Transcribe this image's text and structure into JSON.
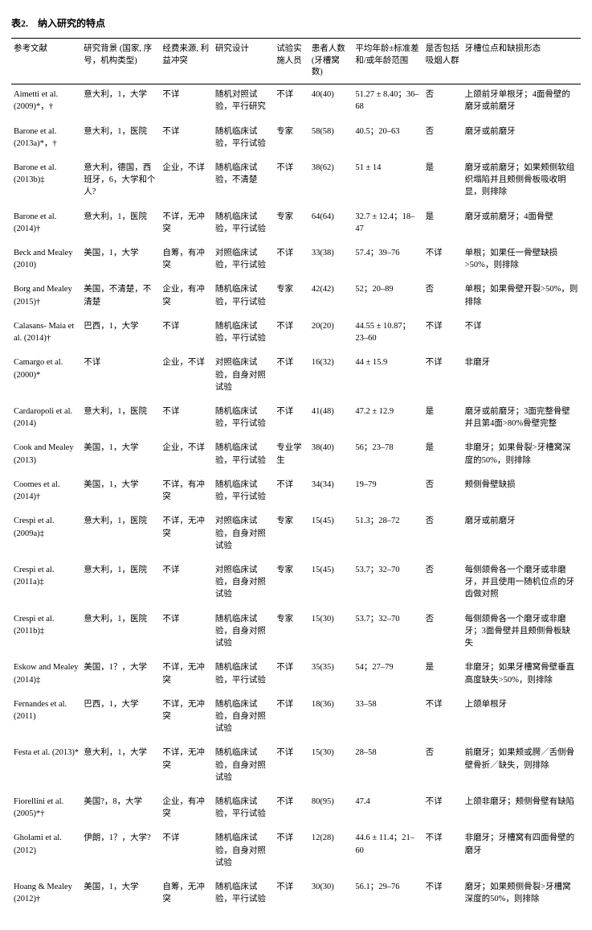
{
  "title": "表2.　纳入研究的特点",
  "columns": [
    "参考文献",
    "研究背景 (国家, 序号，机构类型)",
    "经费来源, 利益冲突",
    "研究设计",
    "试验实施人员",
    "患者人数 (牙槽窝数)",
    "平均年龄±标准差和/或年龄范围",
    "是否包括吸烟人群",
    "牙槽位点和缺损形态"
  ],
  "rows": [
    {
      "ref": "Aimetti et al. (2009)*，†",
      "bg": "意大利，1，大学",
      "fund": "不详",
      "design": "随机对照试验，平行研究",
      "staff": "不详",
      "pat": "40(40)",
      "age": "51.27 ± 8.40；36–68",
      "smoke": "否",
      "morph": "上颌前牙单根牙；4面骨壁的磨牙或前磨牙"
    },
    {
      "ref": "Barone et al. (2013a)*，†",
      "bg": "意大利，1，医院",
      "fund": "不详",
      "design": "随机临床试验，平行试验",
      "staff": "专家",
      "pat": "58(58)",
      "age": "40.5；20–63",
      "smoke": "否",
      "morph": "磨牙或前磨牙"
    },
    {
      "ref": "Barone et al. (2013b)‡",
      "bg": "意大利，德国，西班牙，6，大学和个人?",
      "fund": "企业，不详",
      "design": "随机临床试验，不清楚",
      "staff": "不详",
      "pat": "38(62)",
      "age": "51 ± 14",
      "smoke": "是",
      "morph": "磨牙或前磨牙；如果颊侧软组织塌陷并且颊侧骨板吸收明显，则排除"
    },
    {
      "ref": "Barone et al. (2014)†",
      "bg": "意大利，1，医院",
      "fund": "不详，无冲突",
      "design": "随机临床试验，平行试验",
      "staff": "专家",
      "pat": "64(64)",
      "age": "32.7 ± 12.4；18–47",
      "smoke": "是",
      "morph": "磨牙或前磨牙；4面骨壁"
    },
    {
      "ref": "Beck and Mealey (2010)",
      "bg": "美国，1，大学",
      "fund": "自筹，有冲突",
      "design": "对照临床试验，平行试验",
      "staff": "不详",
      "pat": "33(38)",
      "age": "57.4；39–76",
      "smoke": "不详",
      "morph": "单根；如果任一骨壁缺损>50%，则排除"
    },
    {
      "ref": "Borg and Mealey (2015)†",
      "bg": "美国，不清楚，不清楚",
      "fund": "企业，有冲突",
      "design": "随机临床试验，平行试验",
      "staff": "专家",
      "pat": "42(42)",
      "age": "52；20–89",
      "smoke": "否",
      "morph": "单根；如果骨壁开裂>50%，则排除"
    },
    {
      "ref": "Calasans- Maia et al. (2014)†",
      "bg": "巴西，1，大学",
      "fund": "不详",
      "design": "随机临床试验，平行试验",
      "staff": "不详",
      "pat": "20(20)",
      "age": "44.55 ± 10.87；23–60",
      "smoke": "不详",
      "morph": "不详"
    },
    {
      "ref": "Camargo et al. (2000)*",
      "bg": "不详",
      "fund": "企业，不详",
      "design": "对照临床试验，自身对照试验",
      "staff": "不详",
      "pat": "16(32)",
      "age": "44 ± 15.9",
      "smoke": "不详",
      "morph": "非磨牙"
    },
    {
      "ref": "Cardaropoli et al.(2014)",
      "bg": "意大利，1，医院",
      "fund": "不详",
      "design": "随机临床试验，平行试验",
      "staff": "不详",
      "pat": "41(48)",
      "age": "47.2 ± 12.9",
      "smoke": "是",
      "morph": "磨牙或前磨牙；3面完整骨壁并且第4面>80%骨壁完整"
    },
    {
      "ref": "Cook and Mealey (2013)",
      "bg": "美国，1，大学",
      "fund": "企业，不详",
      "design": "随机临床试验，平行试验",
      "staff": "专业学生",
      "pat": "38(40)",
      "age": "56；23–78",
      "smoke": "是",
      "morph": "非磨牙；如果骨裂>牙槽窝深度的50%，则排除"
    },
    {
      "ref": "Coomes et al. (2014)†",
      "bg": "美国，1，大学",
      "fund": "不详，有冲突",
      "design": "随机临床试验，平行试验",
      "staff": "不详",
      "pat": "34(34)",
      "age": "19–79",
      "smoke": "否",
      "morph": "颊侧骨壁缺损"
    },
    {
      "ref": "Crespi et al. (2009a)‡",
      "bg": "意大利，1，医院",
      "fund": "不详，无冲突",
      "design": "对照临床试验，自身对照试验",
      "staff": "专家",
      "pat": "15(45)",
      "age": "51.3；28–72",
      "smoke": "否",
      "morph": "磨牙或前磨牙"
    },
    {
      "ref": "Crespi et al. (2011a)‡",
      "bg": "意大利，1，医院",
      "fund": "不详",
      "design": "对照临床试验，自身对照试验",
      "staff": "专家",
      "pat": "15(45)",
      "age": "53.7；32–70",
      "smoke": "否",
      "morph": "每侧颌骨各一个磨牙或非磨牙，并且使用一随机位点的牙齿做对照"
    },
    {
      "ref": "Crespi et al. (2011b)‡",
      "bg": "意大利，1，医院",
      "fund": "不详",
      "design": "随机临床试验，自身对照试验",
      "staff": "专家",
      "pat": "15(30)",
      "age": "53.7；32–70",
      "smoke": "否",
      "morph": "每侧颌骨各一个磨牙或非磨牙；3面骨壁并且颊侧骨板缺失"
    },
    {
      "ref": "Eskow and Mealey (2014)‡",
      "bg": "美国，1？，大学",
      "fund": "不详，无冲突",
      "design": "随机临床试验，平行试验",
      "staff": "不详",
      "pat": "35(35)",
      "age": "54；27–79",
      "smoke": "是",
      "morph": "非磨牙；如果牙槽窝骨壁垂直高度缺失>50%，则排除"
    },
    {
      "ref": "Fernandes et al.(2011)",
      "bg": "巴西，1，大学",
      "fund": "不详，无冲突",
      "design": "随机临床试验，自身对照试验",
      "staff": "不详",
      "pat": "18(36)",
      "age": "33–58",
      "smoke": "不详",
      "morph": "上颌单根牙"
    },
    {
      "ref": "Festa et al. (2013)*",
      "bg": "意大利，1，大学",
      "fund": "不详，无冲突",
      "design": "随机临床试验，自身对照试验",
      "staff": "不详",
      "pat": "15(30)",
      "age": "28–58",
      "smoke": "否",
      "morph": "前磨牙；如果颊或腭／舌侧骨壁骨折／缺失，则排除"
    },
    {
      "ref": "Fiorellini et al. (2005)*†",
      "bg": "美国?，8，大学",
      "fund": "企业，有冲突",
      "design": "随机临床试验，平行试验",
      "staff": "不详",
      "pat": "80(95)",
      "age": "47.4",
      "smoke": "不详",
      "morph": "上颌非磨牙；颊侧骨壁有缺陷"
    },
    {
      "ref": "Gholami et al.(2012)",
      "bg": "伊朗，1？，大学?",
      "fund": "不详",
      "design": "随机临床试验，自身对照试验",
      "staff": "不详",
      "pat": "12(28)",
      "age": "44.6 ± 11.4；21–60",
      "smoke": "不详",
      "morph": "非磨牙；牙槽窝有四面骨壁的磨牙"
    },
    {
      "ref": "Hoang & Mealey (2012)†",
      "bg": "美国，1，大学",
      "fund": "自筹，无冲突",
      "design": "随机临床试验，平行试验",
      "staff": "不详",
      "pat": "30(30)",
      "age": "56.1；29–76",
      "smoke": "不详",
      "morph": "磨牙；如果颊侧骨裂>牙槽窝深度的50%，则排除"
    }
  ]
}
